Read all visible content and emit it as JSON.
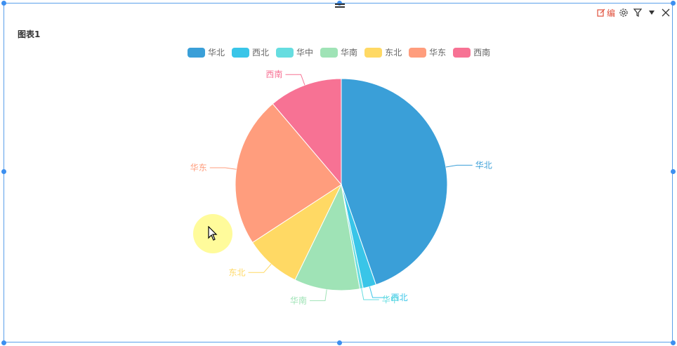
{
  "toolbar": {
    "edit_label": "编"
  },
  "chart_data": {
    "type": "pie",
    "title": "图表1",
    "legend": "top",
    "categories": [
      "华北",
      "西北",
      "华中",
      "华南",
      "东北",
      "华东",
      "西南"
    ],
    "values": [
      44.7,
      2.0,
      0.5,
      10.0,
      8.6,
      23.0,
      11.2
    ],
    "colors": [
      "#3a9fd8",
      "#39c5e8",
      "#66dde0",
      "#9fe3b6",
      "#ffd964",
      "#ff9d7d",
      "#f77294"
    ]
  }
}
